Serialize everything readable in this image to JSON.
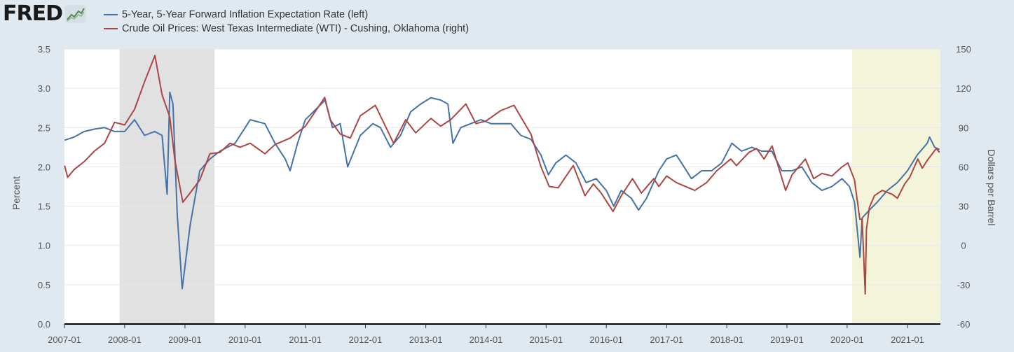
{
  "logo": {
    "text": "FRED",
    "icon": "line-chart-icon"
  },
  "colors": {
    "background": "#e1e9f0",
    "plot_bg": "#ffffff",
    "series_blue": "#4572a7",
    "series_red": "#aa4643",
    "recession": "#e1e1e1",
    "highlight": "#f4f4da",
    "grid": "#e6e6e6"
  },
  "chart_data": {
    "type": "line",
    "series": [
      {
        "name": "5-Year, 5-Year Forward Inflation Expectation Rate (left)",
        "axis": "left",
        "color": "#4572a7",
        "points": [
          [
            "2007-01-02",
            2.34
          ],
          [
            "2007-03-01",
            2.38
          ],
          [
            "2007-05-01",
            2.45
          ],
          [
            "2007-07-01",
            2.48
          ],
          [
            "2007-09-01",
            2.5
          ],
          [
            "2007-11-01",
            2.45
          ],
          [
            "2008-01-01",
            2.45
          ],
          [
            "2008-03-01",
            2.6
          ],
          [
            "2008-05-01",
            2.4
          ],
          [
            "2008-07-01",
            2.45
          ],
          [
            "2008-08-15",
            2.4
          ],
          [
            "2008-09-15",
            1.65
          ],
          [
            "2008-10-01",
            2.95
          ],
          [
            "2008-10-20",
            2.8
          ],
          [
            "2008-11-15",
            1.4
          ],
          [
            "2008-12-15",
            0.45
          ],
          [
            "2009-02-01",
            1.25
          ],
          [
            "2009-04-01",
            1.95
          ],
          [
            "2009-06-01",
            2.1
          ],
          [
            "2009-08-01",
            2.2
          ],
          [
            "2009-11-01",
            2.3
          ],
          [
            "2010-02-01",
            2.6
          ],
          [
            "2010-05-01",
            2.55
          ],
          [
            "2010-07-01",
            2.3
          ],
          [
            "2010-09-01",
            2.1
          ],
          [
            "2010-10-01",
            1.95
          ],
          [
            "2010-11-15",
            2.3
          ],
          [
            "2011-01-01",
            2.6
          ],
          [
            "2011-03-15",
            2.75
          ],
          [
            "2011-05-01",
            2.85
          ],
          [
            "2011-06-15",
            2.5
          ],
          [
            "2011-08-01",
            2.55
          ],
          [
            "2011-09-15",
            2.0
          ],
          [
            "2011-12-01",
            2.4
          ],
          [
            "2012-02-15",
            2.55
          ],
          [
            "2012-04-01",
            2.5
          ],
          [
            "2012-06-01",
            2.25
          ],
          [
            "2012-08-01",
            2.4
          ],
          [
            "2012-10-01",
            2.7
          ],
          [
            "2012-12-01",
            2.8
          ],
          [
            "2013-02-01",
            2.88
          ],
          [
            "2013-04-01",
            2.85
          ],
          [
            "2013-05-15",
            2.8
          ],
          [
            "2013-06-15",
            2.3
          ],
          [
            "2013-08-01",
            2.5
          ],
          [
            "2013-10-01",
            2.55
          ],
          [
            "2013-12-01",
            2.6
          ],
          [
            "2014-02-01",
            2.55
          ],
          [
            "2014-04-01",
            2.55
          ],
          [
            "2014-06-01",
            2.55
          ],
          [
            "2014-08-01",
            2.4
          ],
          [
            "2014-10-01",
            2.35
          ],
          [
            "2014-12-01",
            2.15
          ],
          [
            "2015-01-15",
            1.9
          ],
          [
            "2015-03-01",
            2.05
          ],
          [
            "2015-05-01",
            2.15
          ],
          [
            "2015-07-01",
            2.05
          ],
          [
            "2015-09-01",
            1.8
          ],
          [
            "2015-11-01",
            1.85
          ],
          [
            "2016-01-01",
            1.7
          ],
          [
            "2016-02-15",
            1.5
          ],
          [
            "2016-04-01",
            1.7
          ],
          [
            "2016-06-01",
            1.6
          ],
          [
            "2016-07-15",
            1.45
          ],
          [
            "2016-09-01",
            1.6
          ],
          [
            "2016-11-15",
            1.95
          ],
          [
            "2017-01-01",
            2.1
          ],
          [
            "2017-03-01",
            2.15
          ],
          [
            "2017-04-01",
            2.05
          ],
          [
            "2017-06-01",
            1.85
          ],
          [
            "2017-08-01",
            1.95
          ],
          [
            "2017-10-01",
            1.95
          ],
          [
            "2017-12-01",
            2.05
          ],
          [
            "2018-02-01",
            2.3
          ],
          [
            "2018-04-01",
            2.2
          ],
          [
            "2018-06-01",
            2.25
          ],
          [
            "2018-08-01",
            2.2
          ],
          [
            "2018-10-01",
            2.2
          ],
          [
            "2018-12-01",
            1.95
          ],
          [
            "2019-02-01",
            1.95
          ],
          [
            "2019-04-01",
            2.0
          ],
          [
            "2019-06-01",
            1.8
          ],
          [
            "2019-08-01",
            1.7
          ],
          [
            "2019-10-01",
            1.75
          ],
          [
            "2019-12-01",
            1.85
          ],
          [
            "2020-01-15",
            1.75
          ],
          [
            "2020-02-15",
            1.55
          ],
          [
            "2020-03-19",
            0.85
          ],
          [
            "2020-04-01",
            1.35
          ],
          [
            "2020-05-15",
            1.45
          ],
          [
            "2020-07-01",
            1.55
          ],
          [
            "2020-09-01",
            1.7
          ],
          [
            "2020-11-01",
            1.8
          ],
          [
            "2021-01-01",
            1.95
          ],
          [
            "2021-03-01",
            2.15
          ],
          [
            "2021-05-01",
            2.3
          ],
          [
            "2021-05-15",
            2.38
          ],
          [
            "2021-06-15",
            2.25
          ],
          [
            "2021-07-15",
            2.22
          ]
        ]
      },
      {
        "name": "Crude Oil Prices: West Texas Intermediate (WTI) - Cushing, Oklahoma (right)",
        "axis": "right",
        "color": "#aa4643",
        "points": [
          [
            "2007-01-02",
            61
          ],
          [
            "2007-01-20",
            52
          ],
          [
            "2007-03-01",
            58
          ],
          [
            "2007-05-01",
            64
          ],
          [
            "2007-07-01",
            72
          ],
          [
            "2007-09-01",
            78
          ],
          [
            "2007-11-01",
            94
          ],
          [
            "2008-01-01",
            92
          ],
          [
            "2008-03-01",
            104
          ],
          [
            "2008-05-01",
            125
          ],
          [
            "2008-07-03",
            145
          ],
          [
            "2008-08-15",
            115
          ],
          [
            "2008-10-01",
            98
          ],
          [
            "2008-11-01",
            65
          ],
          [
            "2008-12-19",
            33
          ],
          [
            "2009-02-01",
            40
          ],
          [
            "2009-04-01",
            50
          ],
          [
            "2009-06-01",
            70
          ],
          [
            "2009-08-01",
            71
          ],
          [
            "2009-10-01",
            78
          ],
          [
            "2009-12-01",
            75
          ],
          [
            "2010-02-01",
            78
          ],
          [
            "2010-05-01",
            70
          ],
          [
            "2010-07-01",
            77
          ],
          [
            "2010-10-01",
            82
          ],
          [
            "2011-01-01",
            91
          ],
          [
            "2011-04-29",
            113
          ],
          [
            "2011-06-01",
            96
          ],
          [
            "2011-08-01",
            85
          ],
          [
            "2011-10-01",
            82
          ],
          [
            "2011-12-01",
            99
          ],
          [
            "2012-03-01",
            107
          ],
          [
            "2012-06-20",
            78
          ],
          [
            "2012-09-01",
            96
          ],
          [
            "2012-11-01",
            86
          ],
          [
            "2013-02-01",
            97
          ],
          [
            "2013-04-01",
            91
          ],
          [
            "2013-06-01",
            96
          ],
          [
            "2013-09-01",
            108
          ],
          [
            "2013-11-01",
            93
          ],
          [
            "2014-01-01",
            95
          ],
          [
            "2014-04-01",
            103
          ],
          [
            "2014-06-20",
            107
          ],
          [
            "2014-08-01",
            98
          ],
          [
            "2014-10-01",
            85
          ],
          [
            "2014-12-01",
            60
          ],
          [
            "2015-01-20",
            45
          ],
          [
            "2015-03-15",
            44
          ],
          [
            "2015-06-15",
            61
          ],
          [
            "2015-08-25",
            38
          ],
          [
            "2015-10-15",
            47
          ],
          [
            "2015-12-01",
            40
          ],
          [
            "2016-02-11",
            26
          ],
          [
            "2016-04-01",
            38
          ],
          [
            "2016-06-08",
            51
          ],
          [
            "2016-08-01",
            40
          ],
          [
            "2016-10-15",
            51
          ],
          [
            "2016-11-15",
            45
          ],
          [
            "2017-01-01",
            53
          ],
          [
            "2017-03-01",
            48
          ],
          [
            "2017-06-21",
            42
          ],
          [
            "2017-09-01",
            48
          ],
          [
            "2017-11-01",
            57
          ],
          [
            "2018-01-25",
            66
          ],
          [
            "2018-03-01",
            61
          ],
          [
            "2018-05-15",
            71
          ],
          [
            "2018-07-01",
            74
          ],
          [
            "2018-08-15",
            66
          ],
          [
            "2018-10-03",
            76
          ],
          [
            "2018-12-24",
            42
          ],
          [
            "2019-02-01",
            54
          ],
          [
            "2019-04-23",
            66
          ],
          [
            "2019-06-12",
            51
          ],
          [
            "2019-08-01",
            55
          ],
          [
            "2019-10-01",
            53
          ],
          [
            "2019-12-01",
            60
          ],
          [
            "2020-01-06",
            63
          ],
          [
            "2020-02-15",
            50
          ],
          [
            "2020-03-18",
            20
          ],
          [
            "2020-04-01",
            20
          ],
          [
            "2020-04-20",
            -37
          ],
          [
            "2020-04-27",
            12
          ],
          [
            "2020-05-15",
            29
          ],
          [
            "2020-06-15",
            38
          ],
          [
            "2020-08-01",
            42
          ],
          [
            "2020-10-01",
            39
          ],
          [
            "2020-11-01",
            36
          ],
          [
            "2020-12-15",
            47
          ],
          [
            "2021-01-15",
            52
          ],
          [
            "2021-03-05",
            66
          ],
          [
            "2021-04-01",
            59
          ],
          [
            "2021-05-01",
            65
          ],
          [
            "2021-06-25",
            74
          ],
          [
            "2021-07-15",
            71
          ]
        ]
      }
    ],
    "y_left": {
      "label": "Percent",
      "min": 0.0,
      "max": 3.5,
      "ticks": [
        "0.0",
        "0.5",
        "1.0",
        "1.5",
        "2.0",
        "2.5",
        "3.0",
        "3.5"
      ]
    },
    "y_right": {
      "label": "Dollars per Barrel",
      "min": -60,
      "max": 150,
      "ticks": [
        "-60",
        "-30",
        "0",
        "30",
        "60",
        "90",
        "120",
        "150"
      ]
    },
    "x": {
      "start": "2007-01-01",
      "end": "2021-07-20",
      "ticks": [
        "2007-01",
        "2008-01",
        "2009-01",
        "2010-01",
        "2011-01",
        "2012-01",
        "2013-01",
        "2014-01",
        "2015-01",
        "2016-01",
        "2017-01",
        "2018-01",
        "2019-01",
        "2020-01",
        "2021-01"
      ]
    },
    "shaded_regions": [
      {
        "start": "2007-12-01",
        "end": "2009-06-30",
        "kind": "recession",
        "color": "#e1e1e1"
      },
      {
        "start": "2020-02-01",
        "end": "2021-07-20",
        "kind": "highlight",
        "color": "#f4f4da"
      }
    ],
    "grid": true,
    "legend_placement": "top-left"
  }
}
